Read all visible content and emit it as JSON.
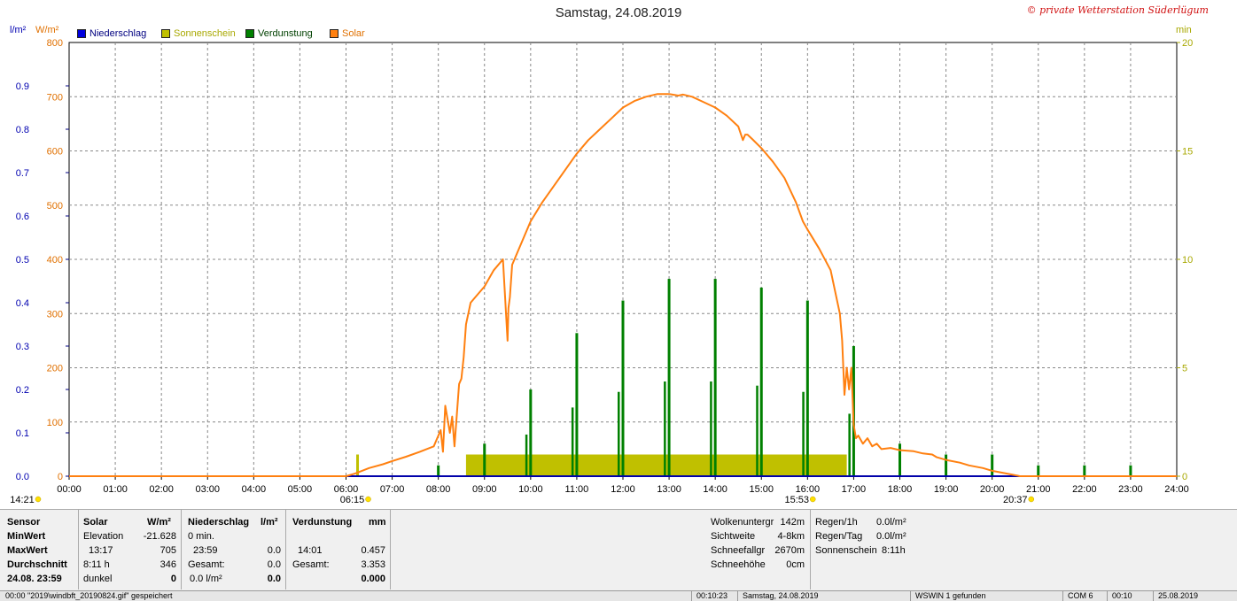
{
  "title": "Samstag, 24.08.2019",
  "copyright": "© private Wetterstation Süderlügum",
  "legend": [
    {
      "label": "Niederschlag",
      "color": "#0000dd",
      "textcolor": "#000080"
    },
    {
      "label": "Sonnenschein",
      "color": "#c0c000",
      "textcolor": "#a8a800"
    },
    {
      "label": "Verdunstung",
      "color": "#008000",
      "textcolor": "#004000"
    },
    {
      "label": "Solar",
      "color": "#ff8010",
      "textcolor": "#e07000"
    }
  ],
  "axis_units": {
    "left1": "l/m²",
    "left2": "W/m²",
    "right": "min"
  },
  "chart_data": {
    "type": "line",
    "title": "Samstag, 24.08.2019",
    "x_range": [
      "00:00",
      "24:00"
    ],
    "x_ticks": [
      "00:00",
      "01:00",
      "02:00",
      "03:00",
      "04:00",
      "05:00",
      "06:00",
      "07:00",
      "08:00",
      "09:00",
      "10:00",
      "11:00",
      "12:00",
      "13:00",
      "14:00",
      "15:00",
      "16:00",
      "17:00",
      "18:00",
      "19:00",
      "20:00",
      "21:00",
      "22:00",
      "23:00",
      "24:00"
    ],
    "y_axes": {
      "niederschlag": {
        "unit": "l/m²",
        "ylim": [
          0,
          1.0
        ],
        "ticks": [
          "0.0",
          "0.1",
          "0.2",
          "0.3",
          "0.4",
          "0.5",
          "0.6",
          "0.7",
          "0.8",
          "0.9"
        ]
      },
      "solar": {
        "unit": "W/m²",
        "ylim": [
          0,
          800
        ],
        "ticks": [
          "0",
          "100",
          "200",
          "300",
          "400",
          "500",
          "600",
          "700",
          "800"
        ]
      },
      "minutes": {
        "unit": "min",
        "ylim": [
          0,
          20
        ],
        "ticks": [
          "0",
          "5",
          "10",
          "15",
          "20"
        ]
      }
    },
    "grid": true,
    "legend_position": "top-left",
    "series": [
      {
        "name": "Solar",
        "axis": "solar",
        "x": [
          0,
          6.0,
          6.2,
          6.5,
          6.8,
          7.0,
          7.3,
          7.6,
          7.9,
          8.0,
          8.05,
          8.1,
          8.15,
          8.25,
          8.3,
          8.35,
          8.45,
          8.5,
          8.55,
          8.6,
          8.65,
          8.7,
          8.8,
          9.0,
          9.2,
          9.4,
          9.5,
          9.52,
          9.55,
          9.6,
          9.7,
          9.85,
          10.0,
          10.25,
          10.5,
          10.75,
          11.0,
          11.25,
          11.5,
          11.75,
          12.0,
          12.25,
          12.5,
          12.75,
          13.0,
          13.2,
          13.3,
          13.5,
          13.75,
          14.0,
          14.25,
          14.5,
          14.6,
          14.65,
          14.7,
          14.8,
          15.0,
          15.25,
          15.5,
          15.75,
          15.9,
          16.0,
          16.25,
          16.5,
          16.6,
          16.7,
          16.75,
          16.8,
          16.85,
          16.9,
          16.95,
          17.0,
          17.05,
          17.1,
          17.2,
          17.3,
          17.4,
          17.5,
          17.6,
          17.8,
          18.0,
          18.3,
          18.5,
          18.7,
          18.8,
          19.0,
          19.3,
          19.5,
          19.8,
          20.0,
          20.3,
          20.55,
          20.6,
          24
        ],
        "y": [
          0,
          0,
          5,
          15,
          22,
          28,
          36,
          45,
          55,
          75,
          85,
          45,
          130,
          80,
          110,
          55,
          170,
          180,
          220,
          280,
          300,
          320,
          330,
          350,
          380,
          400,
          250,
          310,
          330,
          390,
          410,
          440,
          470,
          505,
          535,
          565,
          595,
          620,
          640,
          660,
          680,
          692,
          700,
          705,
          705,
          702,
          704,
          700,
          690,
          680,
          665,
          645,
          620,
          630,
          630,
          622,
          605,
          580,
          550,
          505,
          470,
          455,
          420,
          380,
          340,
          300,
          250,
          150,
          200,
          160,
          200,
          95,
          70,
          75,
          60,
          70,
          55,
          60,
          50,
          52,
          48,
          46,
          42,
          40,
          35,
          30,
          25,
          20,
          15,
          10,
          5,
          1,
          0,
          0
        ]
      },
      {
        "name": "Verdunstung",
        "axis": "minutes",
        "type": "bar",
        "x": [
          8.0,
          9.0,
          10.0,
          11.0,
          12.0,
          13.0,
          14.0,
          15.0,
          16.0,
          17.0,
          18.0,
          19.0,
          20.0,
          21.0,
          22.0,
          23.0
        ],
        "y": [
          0.5,
          1.5,
          4.0,
          6.6,
          8.1,
          9.1,
          9.1,
          8.7,
          8.1,
          6.0,
          1.5,
          1.0,
          1.0,
          0.5,
          0.5,
          0.5
        ]
      },
      {
        "name": "Sonnenschein",
        "axis": "minutes",
        "type": "area",
        "x": [
          8.6,
          16.85
        ],
        "y": [
          1.0,
          1.0
        ]
      },
      {
        "name": "Niederschlag",
        "axis": "niederschlag",
        "x": [
          0,
          24
        ],
        "y": [
          0,
          0
        ]
      }
    ],
    "annotations": [
      {
        "label": "14:21",
        "x": "00:00"
      },
      {
        "label": "06:15",
        "x": "06:15"
      },
      {
        "label": "15:53",
        "x": "15:53"
      },
      {
        "label": "20:37",
        "x": "20:37"
      }
    ]
  },
  "table": {
    "headers": {
      "sensor": "Sensor",
      "solar": "Solar",
      "solar_unit": "W/m²",
      "nieder": "Niederschlag",
      "nieder_unit": "l/m²",
      "verd": "Verdunstung",
      "verd_unit": "mm"
    },
    "rows": {
      "min": {
        "label": "MinWert",
        "solar_a": "Elevation",
        "solar_b": "-21.628",
        "nieder_a": "0 min.",
        "nieder_b": "",
        "verd_a": "",
        "verd_b": ""
      },
      "max": {
        "label": "MaxWert",
        "solar_a": "13:17",
        "solar_b": "705",
        "nieder_a": "23:59",
        "nieder_b": "0.0",
        "verd_a": "14:01",
        "verd_b": "0.457"
      },
      "avg": {
        "label": "Durchschnitt",
        "solar_a": "8:11 h",
        "solar_b": "346",
        "nieder_a": "Gesamt:",
        "nieder_b": "0.0",
        "verd_a": "Gesamt:",
        "verd_b": "3.353"
      },
      "date": {
        "label": "24.08. 23:59",
        "solar_a": "dunkel",
        "solar_b": "0",
        "nieder_a": "0.0 l/m²",
        "nieder_b": "0.0",
        "verd_a": "",
        "verd_b": "0.000"
      }
    },
    "extra": [
      {
        "k": "Wolkenuntergr",
        "v": "142m"
      },
      {
        "k": "Sichtweite",
        "v": "4-8km"
      },
      {
        "k": "Schneefallgr",
        "v": "2670m"
      },
      {
        "k": "Schneehöhe",
        "v": "0cm"
      }
    ],
    "rain": [
      {
        "k": "Regen/1h",
        "v": "0.0l/m²"
      },
      {
        "k": "Regen/Tag",
        "v": "0.0l/m²"
      },
      {
        "k": "Sonnenschein",
        "v": "8:11h"
      }
    ]
  },
  "status": {
    "msg": "00:00 \"2019\\windbft_20190824.gif\" gespeichert",
    "time": "00:10:23",
    "date": "Samstag, 24.08.2019",
    "wswin": "WSWIN 1 gefunden",
    "com": "COM 6",
    "clock": "00:10",
    "today": "25.08.2019"
  }
}
